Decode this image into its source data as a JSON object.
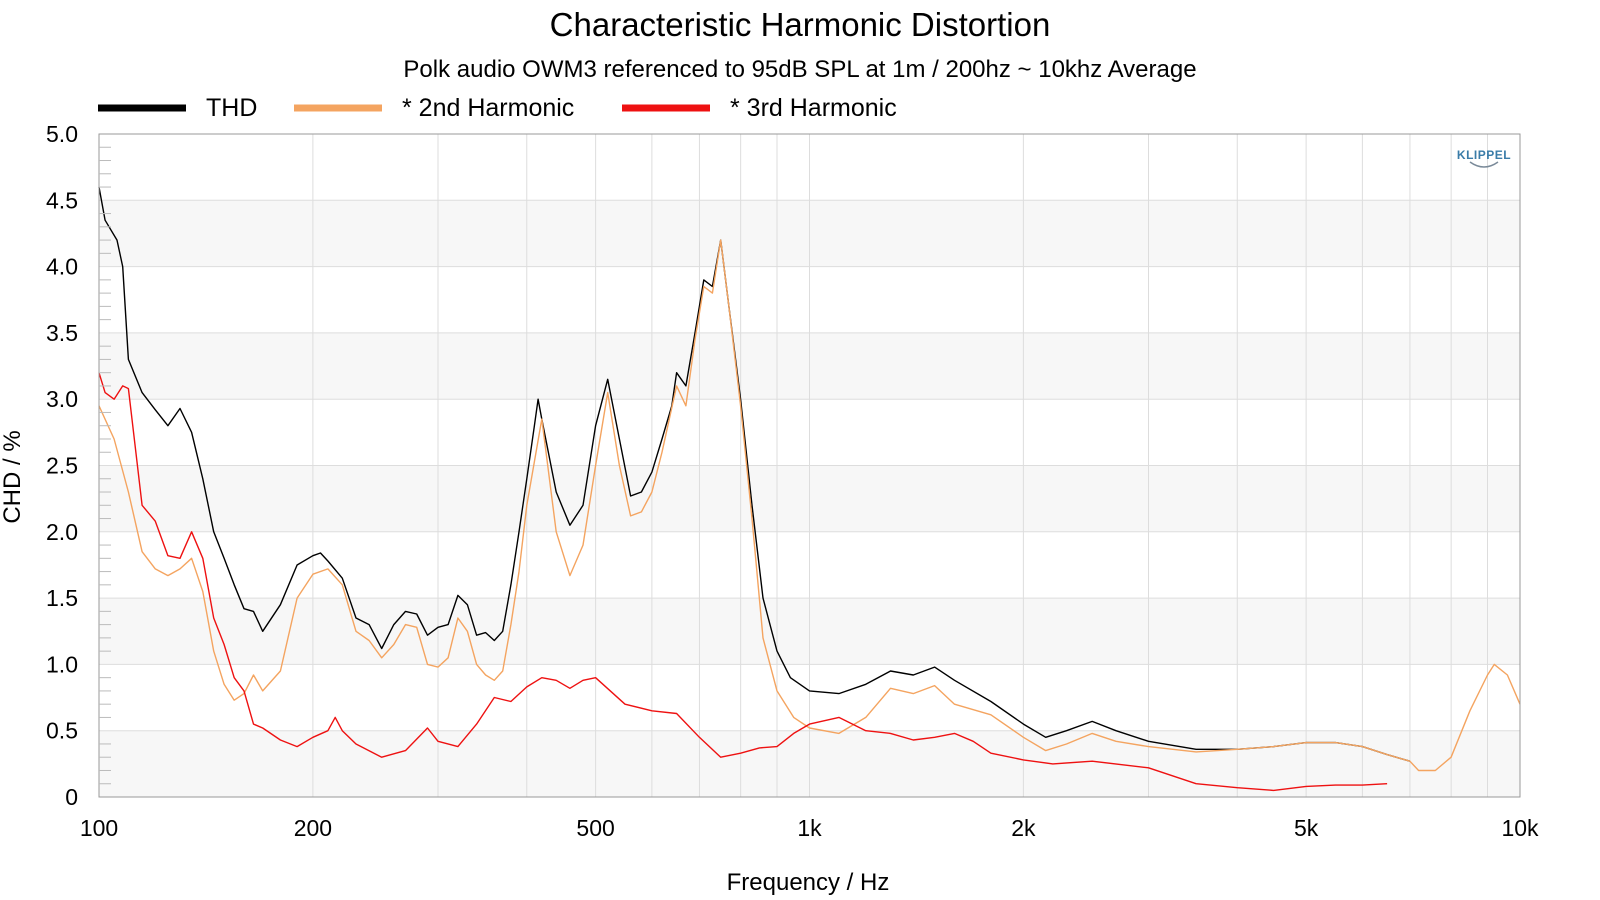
{
  "chart_data": {
    "type": "line",
    "title": "Characteristic Harmonic Distortion",
    "subtitle": "Polk audio OWM3 referenced to 95dB SPL at 1m / 200hz ~ 10khz Average",
    "xlabel": "Frequency / Hz",
    "ylabel": "CHD / %",
    "x_scale": "log",
    "xlim": [
      100,
      10000
    ],
    "ylim": [
      0,
      5
    ],
    "x_ticks": [
      {
        "value": 100,
        "label": "100"
      },
      {
        "value": 200,
        "label": "200"
      },
      {
        "value": 500,
        "label": "500"
      },
      {
        "value": 1000,
        "label": "1k"
      },
      {
        "value": 2000,
        "label": "2k"
      },
      {
        "value": 5000,
        "label": "5k"
      },
      {
        "value": 10000,
        "label": "10k"
      }
    ],
    "y_ticks": [
      {
        "value": 0,
        "label": "0"
      },
      {
        "value": 0.5,
        "label": "0.5"
      },
      {
        "value": 1,
        "label": "1.0"
      },
      {
        "value": 1.5,
        "label": "1.5"
      },
      {
        "value": 2,
        "label": "2.0"
      },
      {
        "value": 2.5,
        "label": "2.5"
      },
      {
        "value": 3,
        "label": "3.0"
      },
      {
        "value": 3.5,
        "label": "3.5"
      },
      {
        "value": 4,
        "label": "4.0"
      },
      {
        "value": 4.5,
        "label": "4.5"
      },
      {
        "value": 5,
        "label": "5.0"
      }
    ],
    "grid": true,
    "legend_position": "top-left",
    "logo": "KLIPPEL",
    "series": [
      {
        "name": "THD",
        "color": "#000000",
        "points": [
          [
            100,
            4.6
          ],
          [
            102,
            4.35
          ],
          [
            106,
            4.2
          ],
          [
            108,
            4.0
          ],
          [
            110,
            3.3
          ],
          [
            115,
            3.05
          ],
          [
            120,
            2.92
          ],
          [
            125,
            2.8
          ],
          [
            130,
            2.93
          ],
          [
            135,
            2.75
          ],
          [
            140,
            2.4
          ],
          [
            145,
            2.0
          ],
          [
            150,
            1.8
          ],
          [
            155,
            1.6
          ],
          [
            160,
            1.42
          ],
          [
            165,
            1.4
          ],
          [
            170,
            1.25
          ],
          [
            180,
            1.45
          ],
          [
            190,
            1.75
          ],
          [
            200,
            1.82
          ],
          [
            205,
            1.84
          ],
          [
            210,
            1.78
          ],
          [
            220,
            1.65
          ],
          [
            230,
            1.35
          ],
          [
            240,
            1.3
          ],
          [
            250,
            1.12
          ],
          [
            260,
            1.3
          ],
          [
            270,
            1.4
          ],
          [
            280,
            1.38
          ],
          [
            290,
            1.22
          ],
          [
            300,
            1.28
          ],
          [
            310,
            1.3
          ],
          [
            320,
            1.52
          ],
          [
            330,
            1.45
          ],
          [
            340,
            1.22
          ],
          [
            350,
            1.24
          ],
          [
            360,
            1.18
          ],
          [
            370,
            1.25
          ],
          [
            380,
            1.6
          ],
          [
            390,
            2.0
          ],
          [
            400,
            2.4
          ],
          [
            410,
            2.8
          ],
          [
            415,
            3.0
          ],
          [
            420,
            2.85
          ],
          [
            440,
            2.3
          ],
          [
            460,
            2.05
          ],
          [
            480,
            2.2
          ],
          [
            500,
            2.8
          ],
          [
            520,
            3.15
          ],
          [
            540,
            2.7
          ],
          [
            560,
            2.27
          ],
          [
            580,
            2.3
          ],
          [
            600,
            2.45
          ],
          [
            620,
            2.7
          ],
          [
            640,
            2.95
          ],
          [
            650,
            3.2
          ],
          [
            670,
            3.1
          ],
          [
            690,
            3.5
          ],
          [
            710,
            3.9
          ],
          [
            730,
            3.85
          ],
          [
            750,
            4.2
          ],
          [
            770,
            3.7
          ],
          [
            800,
            3.0
          ],
          [
            830,
            2.2
          ],
          [
            860,
            1.5
          ],
          [
            900,
            1.1
          ],
          [
            940,
            0.9
          ],
          [
            1000,
            0.8
          ],
          [
            1100,
            0.78
          ],
          [
            1200,
            0.85
          ],
          [
            1300,
            0.95
          ],
          [
            1400,
            0.92
          ],
          [
            1500,
            0.98
          ],
          [
            1600,
            0.88
          ],
          [
            1800,
            0.72
          ],
          [
            2000,
            0.55
          ],
          [
            2150,
            0.45
          ],
          [
            2300,
            0.5
          ],
          [
            2500,
            0.57
          ],
          [
            2700,
            0.5
          ],
          [
            3000,
            0.42
          ],
          [
            3500,
            0.36
          ],
          [
            4000,
            0.36
          ],
          [
            4500,
            0.38
          ],
          [
            5000,
            0.41
          ],
          [
            5500,
            0.41
          ],
          [
            6000,
            0.38
          ],
          [
            6500,
            0.32
          ],
          [
            7000,
            0.27
          ]
        ]
      },
      {
        "name": "* 2nd Harmonic",
        "color": "#f4a460",
        "points": [
          [
            100,
            2.95
          ],
          [
            105,
            2.7
          ],
          [
            110,
            2.3
          ],
          [
            115,
            1.85
          ],
          [
            120,
            1.72
          ],
          [
            125,
            1.67
          ],
          [
            130,
            1.72
          ],
          [
            135,
            1.8
          ],
          [
            140,
            1.55
          ],
          [
            145,
            1.1
          ],
          [
            150,
            0.85
          ],
          [
            155,
            0.73
          ],
          [
            160,
            0.78
          ],
          [
            165,
            0.92
          ],
          [
            170,
            0.8
          ],
          [
            180,
            0.95
          ],
          [
            190,
            1.5
          ],
          [
            200,
            1.68
          ],
          [
            210,
            1.72
          ],
          [
            220,
            1.6
          ],
          [
            230,
            1.25
          ],
          [
            240,
            1.18
          ],
          [
            250,
            1.05
          ],
          [
            260,
            1.15
          ],
          [
            270,
            1.3
          ],
          [
            280,
            1.28
          ],
          [
            290,
            1.0
          ],
          [
            300,
            0.98
          ],
          [
            310,
            1.05
          ],
          [
            320,
            1.35
          ],
          [
            330,
            1.25
          ],
          [
            340,
            1.0
          ],
          [
            350,
            0.92
          ],
          [
            360,
            0.88
          ],
          [
            370,
            0.95
          ],
          [
            380,
            1.3
          ],
          [
            390,
            1.7
          ],
          [
            400,
            2.2
          ],
          [
            420,
            2.85
          ],
          [
            440,
            2.0
          ],
          [
            460,
            1.67
          ],
          [
            480,
            1.9
          ],
          [
            500,
            2.5
          ],
          [
            520,
            3.05
          ],
          [
            540,
            2.5
          ],
          [
            560,
            2.12
          ],
          [
            580,
            2.15
          ],
          [
            600,
            2.3
          ],
          [
            620,
            2.6
          ],
          [
            650,
            3.1
          ],
          [
            670,
            2.95
          ],
          [
            690,
            3.45
          ],
          [
            710,
            3.85
          ],
          [
            730,
            3.8
          ],
          [
            750,
            4.2
          ],
          [
            770,
            3.7
          ],
          [
            800,
            2.95
          ],
          [
            830,
            2.1
          ],
          [
            860,
            1.2
          ],
          [
            900,
            0.8
          ],
          [
            950,
            0.6
          ],
          [
            1000,
            0.52
          ],
          [
            1100,
            0.48
          ],
          [
            1200,
            0.6
          ],
          [
            1300,
            0.82
          ],
          [
            1400,
            0.78
          ],
          [
            1500,
            0.84
          ],
          [
            1600,
            0.7
          ],
          [
            1800,
            0.62
          ],
          [
            2000,
            0.45
          ],
          [
            2150,
            0.35
          ],
          [
            2300,
            0.4
          ],
          [
            2500,
            0.48
          ],
          [
            2700,
            0.42
          ],
          [
            3000,
            0.38
          ],
          [
            3500,
            0.34
          ],
          [
            4000,
            0.36
          ],
          [
            4500,
            0.38
          ],
          [
            5000,
            0.41
          ],
          [
            5500,
            0.41
          ],
          [
            6000,
            0.38
          ],
          [
            6500,
            0.32
          ],
          [
            7000,
            0.27
          ],
          [
            7200,
            0.2
          ],
          [
            7600,
            0.2
          ],
          [
            8000,
            0.3
          ],
          [
            8500,
            0.65
          ],
          [
            9000,
            0.92
          ],
          [
            9200,
            1.0
          ],
          [
            9600,
            0.92
          ],
          [
            10000,
            0.7
          ]
        ]
      },
      {
        "name": "* 3rd Harmonic",
        "color": "#ee1111",
        "points": [
          [
            100,
            3.2
          ],
          [
            102,
            3.05
          ],
          [
            105,
            3.0
          ],
          [
            108,
            3.1
          ],
          [
            110,
            3.08
          ],
          [
            115,
            2.2
          ],
          [
            120,
            2.08
          ],
          [
            125,
            1.82
          ],
          [
            130,
            1.8
          ],
          [
            135,
            2.0
          ],
          [
            140,
            1.8
          ],
          [
            145,
            1.35
          ],
          [
            150,
            1.15
          ],
          [
            155,
            0.9
          ],
          [
            160,
            0.8
          ],
          [
            165,
            0.55
          ],
          [
            170,
            0.52
          ],
          [
            180,
            0.43
          ],
          [
            190,
            0.38
          ],
          [
            200,
            0.45
          ],
          [
            210,
            0.5
          ],
          [
            215,
            0.6
          ],
          [
            220,
            0.5
          ],
          [
            230,
            0.4
          ],
          [
            250,
            0.3
          ],
          [
            270,
            0.35
          ],
          [
            290,
            0.52
          ],
          [
            300,
            0.42
          ],
          [
            320,
            0.38
          ],
          [
            340,
            0.55
          ],
          [
            360,
            0.75
          ],
          [
            380,
            0.72
          ],
          [
            400,
            0.83
          ],
          [
            420,
            0.9
          ],
          [
            440,
            0.88
          ],
          [
            460,
            0.82
          ],
          [
            480,
            0.88
          ],
          [
            500,
            0.9
          ],
          [
            550,
            0.7
          ],
          [
            600,
            0.65
          ],
          [
            650,
            0.63
          ],
          [
            700,
            0.45
          ],
          [
            750,
            0.3
          ],
          [
            800,
            0.33
          ],
          [
            850,
            0.37
          ],
          [
            900,
            0.38
          ],
          [
            950,
            0.48
          ],
          [
            1000,
            0.55
          ],
          [
            1100,
            0.6
          ],
          [
            1200,
            0.5
          ],
          [
            1300,
            0.48
          ],
          [
            1400,
            0.43
          ],
          [
            1500,
            0.45
          ],
          [
            1600,
            0.48
          ],
          [
            1700,
            0.42
          ],
          [
            1800,
            0.33
          ],
          [
            2000,
            0.28
          ],
          [
            2200,
            0.25
          ],
          [
            2500,
            0.27
          ],
          [
            3000,
            0.22
          ],
          [
            3500,
            0.1
          ],
          [
            4000,
            0.07
          ],
          [
            4500,
            0.05
          ],
          [
            5000,
            0.08
          ],
          [
            5500,
            0.09
          ],
          [
            6000,
            0.09
          ],
          [
            6500,
            0.1
          ]
        ]
      }
    ]
  }
}
